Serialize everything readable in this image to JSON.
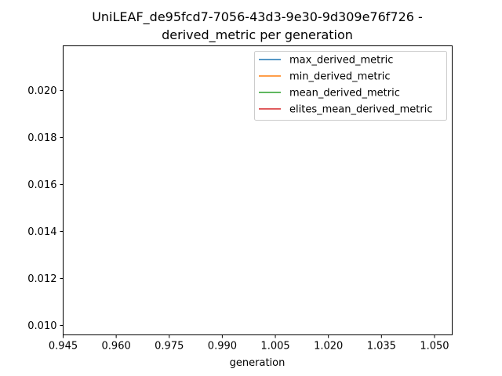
{
  "chart_data": {
    "type": "line",
    "title_line1": "UniLEAF_de95fcd7-7056-43d3-9e30-9d309e76f726 -",
    "title_line2": "derived_metric per generation",
    "xlabel": "generation",
    "ylabel": "",
    "xlim": [
      0.945,
      1.055
    ],
    "ylim": [
      0.0096,
      0.0219
    ],
    "x_ticks": [
      "0.945",
      "0.960",
      "0.975",
      "0.990",
      "1.005",
      "1.020",
      "1.035",
      "1.050"
    ],
    "y_ticks": [
      "0.010",
      "0.012",
      "0.014",
      "0.016",
      "0.018",
      "0.020"
    ],
    "grid": false,
    "legend_position": "top-right",
    "series": [
      {
        "name": "max_derived_metric",
        "color": "#1f77b4",
        "x": [],
        "y": []
      },
      {
        "name": "min_derived_metric",
        "color": "#ff7f0e",
        "x": [],
        "y": []
      },
      {
        "name": "mean_derived_metric",
        "color": "#2ca02c",
        "x": [],
        "y": []
      },
      {
        "name": "elites_mean_derived_metric",
        "color": "#d62728",
        "x": [],
        "y": []
      }
    ]
  }
}
